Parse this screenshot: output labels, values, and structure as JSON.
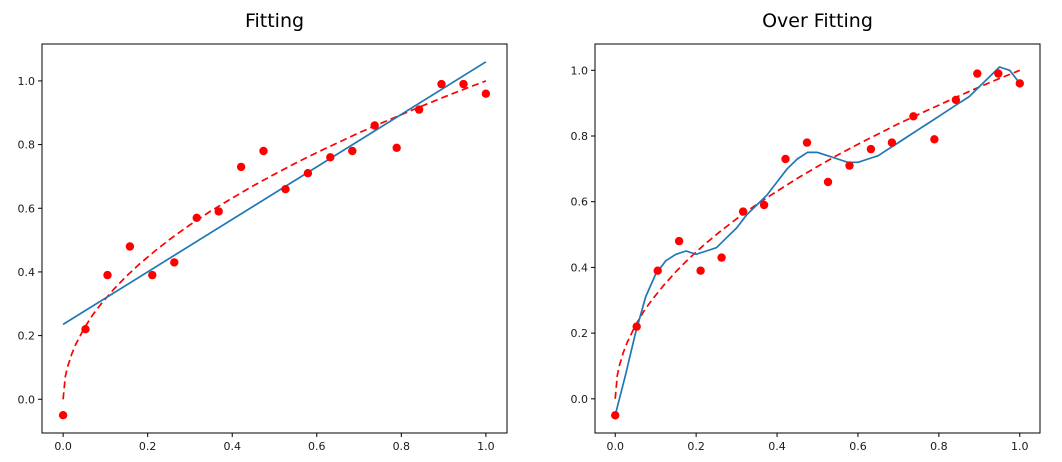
{
  "figure": {
    "background": "#ffffff",
    "scatter_color": "#ff0000",
    "true_curve_color": "#ff0000",
    "fit_line_color": "#1f77b4"
  },
  "chart_data": [
    {
      "type": "scatter",
      "title": "Fitting",
      "xlabel": "",
      "ylabel": "",
      "xlim": [
        -0.05,
        1.05
      ],
      "ylim": [
        -0.106,
        1.116
      ],
      "grid": false,
      "legend": "none",
      "xticks": {
        "labels": [
          "0.0",
          "0.2",
          "0.4",
          "0.6",
          "0.8",
          "1.0"
        ],
        "values": [
          0,
          0.2,
          0.4,
          0.6,
          0.8,
          1.0
        ]
      },
      "yticks": {
        "labels": [
          "0.0",
          "0.2",
          "0.4",
          "0.6",
          "0.8",
          "1.0"
        ],
        "values": [
          0,
          0.2,
          0.4,
          0.6,
          0.8,
          1.0
        ]
      },
      "scatter": {
        "name": "data-points",
        "color": "#ff0000",
        "x": [
          0,
          0.053,
          0.105,
          0.158,
          0.211,
          0.263,
          0.316,
          0.368,
          0.421,
          0.474,
          0.526,
          0.579,
          0.632,
          0.684,
          0.737,
          0.789,
          0.842,
          0.895,
          0.947,
          1.0
        ],
        "y": [
          -0.05,
          0.22,
          0.39,
          0.48,
          0.39,
          0.43,
          0.57,
          0.59,
          0.73,
          0.78,
          0.66,
          0.71,
          0.76,
          0.78,
          0.86,
          0.79,
          0.91,
          0.99,
          0.99,
          0.96
        ]
      },
      "series": [
        {
          "name": "true-function-dashed-line",
          "style": "dashed",
          "color": "#ff0000",
          "x": [
            0,
            0.005,
            0.01,
            0.02,
            0.03,
            0.05,
            0.07,
            0.09,
            0.12,
            0.15,
            0.18,
            0.22,
            0.26,
            0.3,
            0.35,
            0.4,
            0.45,
            0.5,
            0.55,
            0.6,
            0.65,
            0.7,
            0.75,
            0.8,
            0.85,
            0.9,
            0.95,
            1.0
          ],
          "y": [
            0,
            0.071,
            0.1,
            0.141,
            0.173,
            0.224,
            0.265,
            0.3,
            0.346,
            0.387,
            0.424,
            0.469,
            0.51,
            0.548,
            0.592,
            0.632,
            0.671,
            0.707,
            0.742,
            0.775,
            0.806,
            0.837,
            0.866,
            0.894,
            0.922,
            0.949,
            0.975,
            1.0
          ]
        },
        {
          "name": "linear-fit-line",
          "style": "solid",
          "color": "#1f77b4",
          "x": [
            0,
            1.0
          ],
          "y": [
            0.235,
            1.06
          ]
        }
      ]
    },
    {
      "type": "scatter",
      "title": "Over Fitting",
      "xlabel": "",
      "ylabel": "",
      "xlim": [
        -0.05,
        1.05
      ],
      "ylim": [
        -0.104,
        1.08
      ],
      "grid": false,
      "legend": "none",
      "xticks": {
        "labels": [
          "0.0",
          "0.2",
          "0.4",
          "0.6",
          "0.8",
          "1.0"
        ],
        "values": [
          0,
          0.2,
          0.4,
          0.6,
          0.8,
          1.0
        ]
      },
      "yticks": {
        "labels": [
          "0.0",
          "0.2",
          "0.4",
          "0.6",
          "0.8",
          "1.0"
        ],
        "values": [
          0,
          0.2,
          0.4,
          0.6,
          0.8,
          1.0
        ]
      },
      "scatter": {
        "name": "data-points",
        "color": "#ff0000",
        "x": [
          0,
          0.053,
          0.105,
          0.158,
          0.211,
          0.263,
          0.316,
          0.368,
          0.421,
          0.474,
          0.526,
          0.579,
          0.632,
          0.684,
          0.737,
          0.789,
          0.842,
          0.895,
          0.947,
          1.0
        ],
        "y": [
          -0.05,
          0.22,
          0.39,
          0.48,
          0.39,
          0.43,
          0.57,
          0.59,
          0.73,
          0.78,
          0.66,
          0.71,
          0.76,
          0.78,
          0.86,
          0.79,
          0.91,
          0.99,
          0.99,
          0.96
        ]
      },
      "series": [
        {
          "name": "true-function-dashed-line",
          "style": "dashed",
          "color": "#ff0000",
          "x": [
            0,
            0.005,
            0.01,
            0.02,
            0.03,
            0.05,
            0.07,
            0.09,
            0.12,
            0.15,
            0.18,
            0.22,
            0.26,
            0.3,
            0.35,
            0.4,
            0.45,
            0.5,
            0.55,
            0.6,
            0.65,
            0.7,
            0.75,
            0.8,
            0.85,
            0.9,
            0.95,
            1.0
          ],
          "y": [
            0,
            0.071,
            0.1,
            0.141,
            0.173,
            0.224,
            0.265,
            0.3,
            0.346,
            0.387,
            0.424,
            0.469,
            0.51,
            0.548,
            0.592,
            0.632,
            0.671,
            0.707,
            0.742,
            0.775,
            0.806,
            0.837,
            0.866,
            0.894,
            0.922,
            0.949,
            0.975,
            1.0
          ]
        },
        {
          "name": "overfit-model-line",
          "style": "solid",
          "color": "#1f77b4",
          "x": [
            0,
            0.025,
            0.05,
            0.075,
            0.1,
            0.125,
            0.15,
            0.175,
            0.2,
            0.225,
            0.25,
            0.275,
            0.3,
            0.325,
            0.35,
            0.375,
            0.4,
            0.425,
            0.45,
            0.475,
            0.5,
            0.525,
            0.55,
            0.575,
            0.6,
            0.625,
            0.65,
            0.675,
            0.7,
            0.725,
            0.75,
            0.775,
            0.8,
            0.825,
            0.85,
            0.875,
            0.9,
            0.925,
            0.95,
            0.975,
            1.0
          ],
          "y": [
            -0.05,
            0.07,
            0.2,
            0.31,
            0.38,
            0.42,
            0.44,
            0.45,
            0.44,
            0.45,
            0.46,
            0.49,
            0.52,
            0.56,
            0.59,
            0.62,
            0.66,
            0.7,
            0.73,
            0.75,
            0.75,
            0.74,
            0.73,
            0.72,
            0.72,
            0.73,
            0.74,
            0.76,
            0.78,
            0.8,
            0.82,
            0.84,
            0.86,
            0.88,
            0.9,
            0.92,
            0.95,
            0.98,
            1.01,
            1.0,
            0.96
          ]
        }
      ]
    }
  ]
}
